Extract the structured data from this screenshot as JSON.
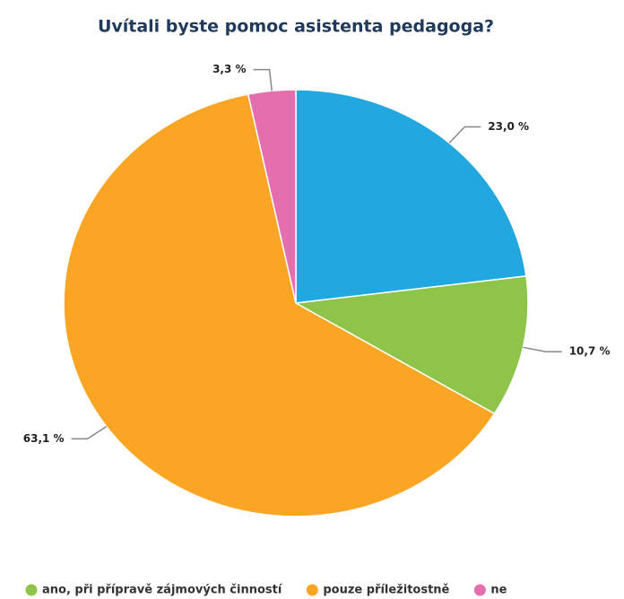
{
  "chart_data": {
    "type": "pie",
    "title": "Uvítali byste pomoc asistenta pedagoga?",
    "categories": [
      null,
      "ano, při přípravě zájmových činností",
      "pouze příležitostně",
      "ne"
    ],
    "values": [
      23.0,
      10.7,
      63.1,
      3.3
    ],
    "value_labels": [
      "23,0 %",
      "10,7 %",
      "63,1 %",
      "3,3 %"
    ],
    "colors": [
      "#22a8e0",
      "#8dc449",
      "#faa624",
      "#e56fae"
    ],
    "legend": "bottom"
  }
}
